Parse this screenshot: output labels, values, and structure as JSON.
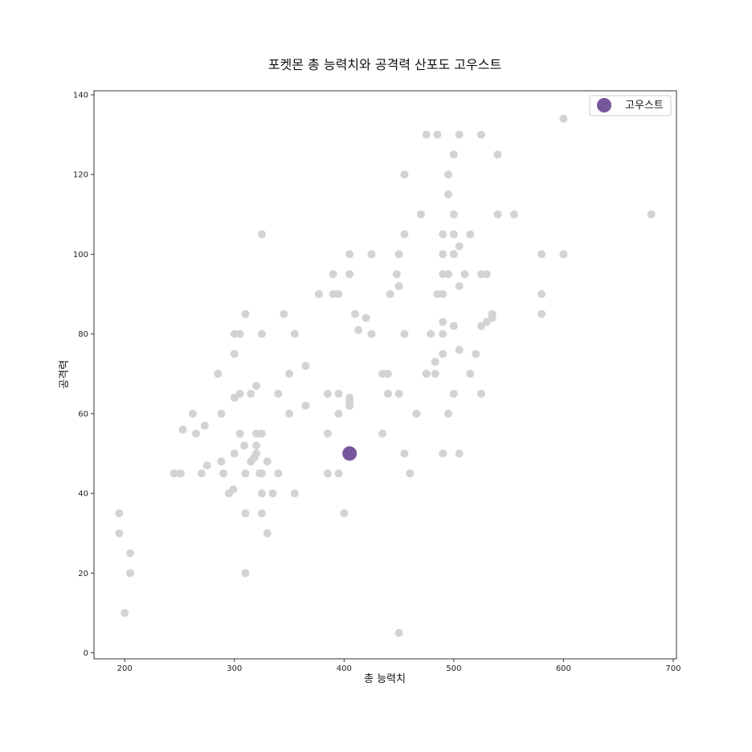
{
  "chart_data": {
    "type": "scatter",
    "title": "포켓몬 총 능력치와 공격력 산포도 고우스트",
    "xlabel": "총 능력치",
    "ylabel": "공격력",
    "xlim": [
      172,
      703
    ],
    "ylim": [
      -1.5,
      141
    ],
    "xticks": [
      200,
      300,
      400,
      500,
      600,
      700
    ],
    "yticks": [
      0,
      20,
      40,
      60,
      80,
      100,
      120,
      140
    ],
    "grid": false,
    "legend_position": "top-right",
    "colors": {
      "background_points": "#d3d3d3",
      "highlight": "#76579b",
      "axes": "#333333"
    },
    "series": [
      {
        "role": "background",
        "x": [
          195,
          195,
          200,
          205,
          205,
          245,
          251,
          253,
          262,
          265,
          270,
          273,
          275,
          285,
          288,
          288,
          290,
          295,
          299,
          300,
          300,
          300,
          300,
          305,
          305,
          305,
          309,
          310,
          310,
          310,
          310,
          315,
          315,
          318,
          320,
          320,
          320,
          320,
          323,
          325,
          325,
          325,
          325,
          325,
          325,
          325,
          330,
          330,
          335,
          340,
          340,
          345,
          350,
          350,
          355,
          355,
          365,
          365,
          377,
          385,
          385,
          385,
          390,
          390,
          395,
          395,
          395,
          395,
          400,
          405,
          405,
          405,
          405,
          405,
          405,
          410,
          413,
          420,
          425,
          425,
          435,
          435,
          435,
          440,
          440,
          442,
          448,
          450,
          450,
          450,
          450,
          455,
          455,
          455,
          455,
          460,
          466,
          470,
          475,
          475,
          475,
          479,
          483,
          483,
          485,
          485,
          490,
          490,
          490,
          490,
          490,
          490,
          490,
          490,
          495,
          495,
          495,
          495,
          500,
          500,
          500,
          500,
          500,
          500,
          505,
          505,
          505,
          505,
          505,
          510,
          515,
          515,
          520,
          525,
          525,
          525,
          525,
          530,
          530,
          535,
          535,
          540,
          540,
          555,
          580,
          580,
          580,
          600,
          600,
          680
        ],
        "y": [
          35,
          30,
          10,
          25,
          20,
          45,
          45,
          56,
          60,
          55,
          45,
          57,
          47,
          70,
          60,
          48,
          45,
          40,
          41,
          80,
          75,
          64,
          50,
          80,
          65,
          55,
          52,
          85,
          35,
          20,
          45,
          65,
          48,
          49,
          67,
          55,
          52,
          50,
          45,
          55,
          105,
          80,
          45,
          40,
          35,
          45,
          48,
          30,
          40,
          65,
          45,
          85,
          70,
          60,
          80,
          40,
          72,
          62,
          90,
          65,
          55,
          45,
          95,
          90,
          90,
          65,
          60,
          45,
          35,
          100,
          95,
          64,
          63,
          62,
          62,
          85,
          81,
          84,
          100,
          80,
          70,
          55,
          70,
          65,
          70,
          90,
          95,
          100,
          92,
          65,
          5,
          120,
          105,
          80,
          50,
          45,
          60,
          110,
          130,
          70,
          70,
          80,
          73,
          70,
          130,
          90,
          105,
          100,
          95,
          90,
          83,
          80,
          75,
          50,
          120,
          115,
          95,
          60,
          125,
          110,
          105,
          100,
          82,
          65,
          130,
          102,
          92,
          76,
          50,
          95,
          105,
          70,
          75,
          130,
          95,
          82,
          65,
          95,
          83,
          85,
          84,
          125,
          110,
          110,
          100,
          90,
          85,
          134,
          100,
          110
        ]
      },
      {
        "role": "highlight",
        "name": "고우스트",
        "x": [
          405
        ],
        "y": [
          50
        ]
      }
    ]
  }
}
